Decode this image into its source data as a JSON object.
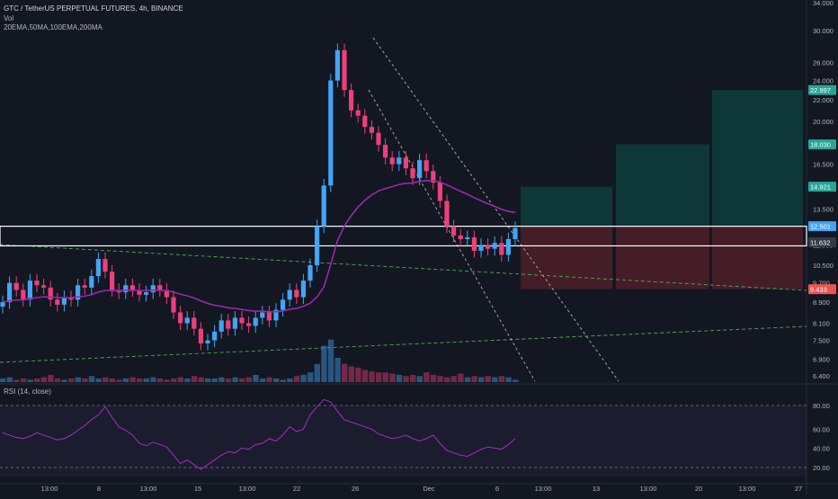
{
  "header": {
    "symbol_line": "GTC / TetherUS PERPETUAL FUTURES, 4h, BINANCE",
    "vol_label": "Vol",
    "indicators_label": "20EMA,50MA,100EMA,200MA",
    "rsi_label": "RSI (14, close)"
  },
  "colors": {
    "background": "#131722",
    "bull": "#42a5f5",
    "bear": "#ec407a",
    "ma_line": "#9c27b0",
    "rsi_line": "#a030c0",
    "target_zone": "#0e3b3b",
    "stop_zone": "#4a1e28",
    "trendline": "#b0b3b8",
    "ema_dashed": "#4caf50",
    "support_box": "#ffffff"
  },
  "chart_data": [
    {
      "type": "candlestick",
      "y_scale": "log",
      "y_ticks": [
        "34.000",
        "30.000",
        "26.000",
        "24.000",
        "22.000",
        "20.000",
        "18.000",
        "16.500",
        "15.000",
        "13.500",
        "12.500",
        "11.500",
        "10.500",
        "9.700",
        "8.900",
        "8.100",
        "7.500",
        "6.900",
        "6.400"
      ],
      "x_ticks": [
        "13:00",
        "8",
        "13:00",
        "15",
        "13:00",
        "22",
        "26",
        "Dec",
        "6",
        "13:00",
        "13",
        "13:00",
        "20",
        "13:00",
        "27"
      ],
      "price_labels": [
        {
          "value": "22.997",
          "color": "#26a69a"
        },
        {
          "value": "18.030",
          "color": "#26a69a"
        },
        {
          "value": "14.921",
          "color": "#26a69a"
        },
        {
          "value": "12.501",
          "color": "#42a5f5"
        },
        {
          "value": "11.632",
          "color": "#363a45"
        },
        {
          "value": "9.433",
          "color": "#ef5350"
        }
      ],
      "support_zone": [
        11.45,
        12.5
      ],
      "entry": 12.45,
      "stop": 9.433,
      "targets": [
        14.921,
        18.03,
        22.997
      ],
      "close_series": [
        8.9,
        9.7,
        9.4,
        9.0,
        9.8,
        9.6,
        9.5,
        9.0,
        8.8,
        9.1,
        9.0,
        9.6,
        9.5,
        10.0,
        10.8,
        10.2,
        9.4,
        9.3,
        9.6,
        9.4,
        9.2,
        9.3,
        9.6,
        9.4,
        9.1,
        8.5,
        8.1,
        8.3,
        7.9,
        7.4,
        7.5,
        7.8,
        8.2,
        7.9,
        8.3,
        8.1,
        8.0,
        8.3,
        8.5,
        8.2,
        8.6,
        9.0,
        9.4,
        9.1,
        9.8,
        10.5,
        12.5,
        15.0,
        24.0,
        27.5,
        23.0,
        21.0,
        20.5,
        19.5,
        19.0,
        18.0,
        17.0,
        16.5,
        17.0,
        16.2,
        15.5,
        16.8,
        16.0,
        15.2,
        14.0,
        12.5,
        12.0,
        11.8,
        11.9,
        11.2,
        11.5,
        11.3,
        11.6,
        11.0,
        11.8,
        12.4
      ],
      "volume": [
        3,
        4,
        2,
        3,
        2,
        3,
        4,
        6,
        3,
        2,
        3,
        4,
        3,
        5,
        3,
        4,
        3,
        2,
        3,
        4,
        3,
        3,
        4,
        3,
        2,
        3,
        4,
        3,
        5,
        4,
        3,
        3,
        4,
        3,
        4,
        3,
        4,
        6,
        3,
        4,
        3,
        2,
        3,
        5,
        6,
        8,
        15,
        30,
        35,
        20,
        15,
        13,
        12,
        10,
        9,
        8,
        8,
        7,
        6,
        5,
        6,
        5,
        8,
        6,
        5,
        4,
        5,
        7,
        4,
        5,
        4,
        5,
        4,
        5,
        4,
        2
      ],
      "rsi_ticks": [
        "80.00",
        "60.00",
        "40.00",
        "20.00"
      ],
      "rsi_values": [
        57,
        55,
        53,
        52,
        54,
        57,
        55,
        53,
        51,
        52,
        55,
        59,
        63,
        68,
        72,
        79,
        70,
        62,
        59,
        55,
        48,
        46,
        49,
        47,
        45,
        38,
        31,
        34,
        30,
        26,
        30,
        34,
        38,
        41,
        40,
        44,
        43,
        47,
        48,
        52,
        50,
        55,
        62,
        58,
        60,
        72,
        79,
        85,
        83,
        75,
        68,
        66,
        64,
        62,
        60,
        56,
        54,
        52,
        53,
        55,
        52,
        50,
        52,
        55,
        48,
        42,
        40,
        38,
        37,
        40,
        43,
        45,
        44,
        43,
        47,
        52
      ]
    }
  ]
}
